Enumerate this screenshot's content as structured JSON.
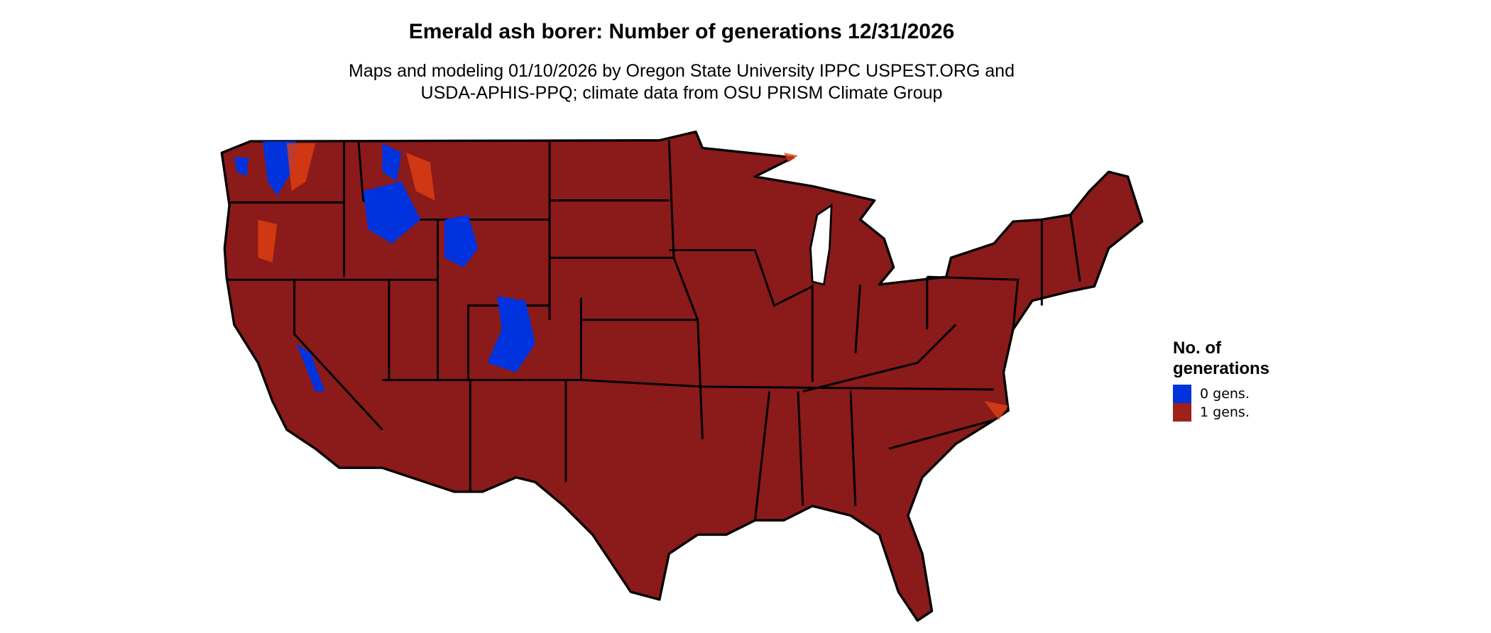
{
  "title": "Emerald ash borer: Number of generations 12/31/2026",
  "subtitle_line1": "Maps and modeling 01/10/2026 by Oregon State University IPPC USPEST.ORG and",
  "subtitle_line2": "USDA-APHIS-PPQ; climate data from OSU PRISM Climate Group",
  "legend": {
    "title": "No. of generations",
    "items": [
      {
        "label": "0 gens.",
        "color": "#0033dd"
      },
      {
        "label": "1 gens.",
        "color": "#a0201a"
      }
    ]
  },
  "colors": {
    "land": "#8b1a1a",
    "border": "#000000",
    "transition": "#e04010"
  }
}
